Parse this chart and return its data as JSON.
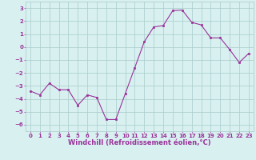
{
  "x": [
    0,
    1,
    2,
    3,
    4,
    5,
    6,
    7,
    8,
    9,
    10,
    11,
    12,
    13,
    14,
    15,
    16,
    17,
    18,
    19,
    20,
    21,
    22,
    23
  ],
  "y": [
    -3.4,
    -3.7,
    -2.8,
    -3.3,
    -3.3,
    -4.5,
    -3.7,
    -3.9,
    -5.6,
    -5.6,
    -3.6,
    -1.6,
    0.4,
    1.55,
    1.65,
    2.8,
    2.85,
    1.9,
    1.7,
    0.7,
    0.7,
    -0.2,
    -1.2,
    -0.5
  ],
  "line_color": "#993399",
  "marker": "s",
  "marker_size": 2.0,
  "bg_color": "#d8f0f0",
  "grid_color": "#aacccc",
  "xlabel": "Windchill (Refroidissement éolien,°C)",
  "xlabel_color": "#993399",
  "xlim": [
    -0.5,
    23.5
  ],
  "ylim": [
    -6.5,
    3.5
  ],
  "yticks": [
    -6,
    -5,
    -4,
    -3,
    -2,
    -1,
    0,
    1,
    2,
    3
  ],
  "xticks": [
    0,
    1,
    2,
    3,
    4,
    5,
    6,
    7,
    8,
    9,
    10,
    11,
    12,
    13,
    14,
    15,
    16,
    17,
    18,
    19,
    20,
    21,
    22,
    23
  ],
  "tick_color": "#993399",
  "tick_fontsize": 5.0,
  "xlabel_fontsize": 6.0,
  "linewidth": 0.8
}
